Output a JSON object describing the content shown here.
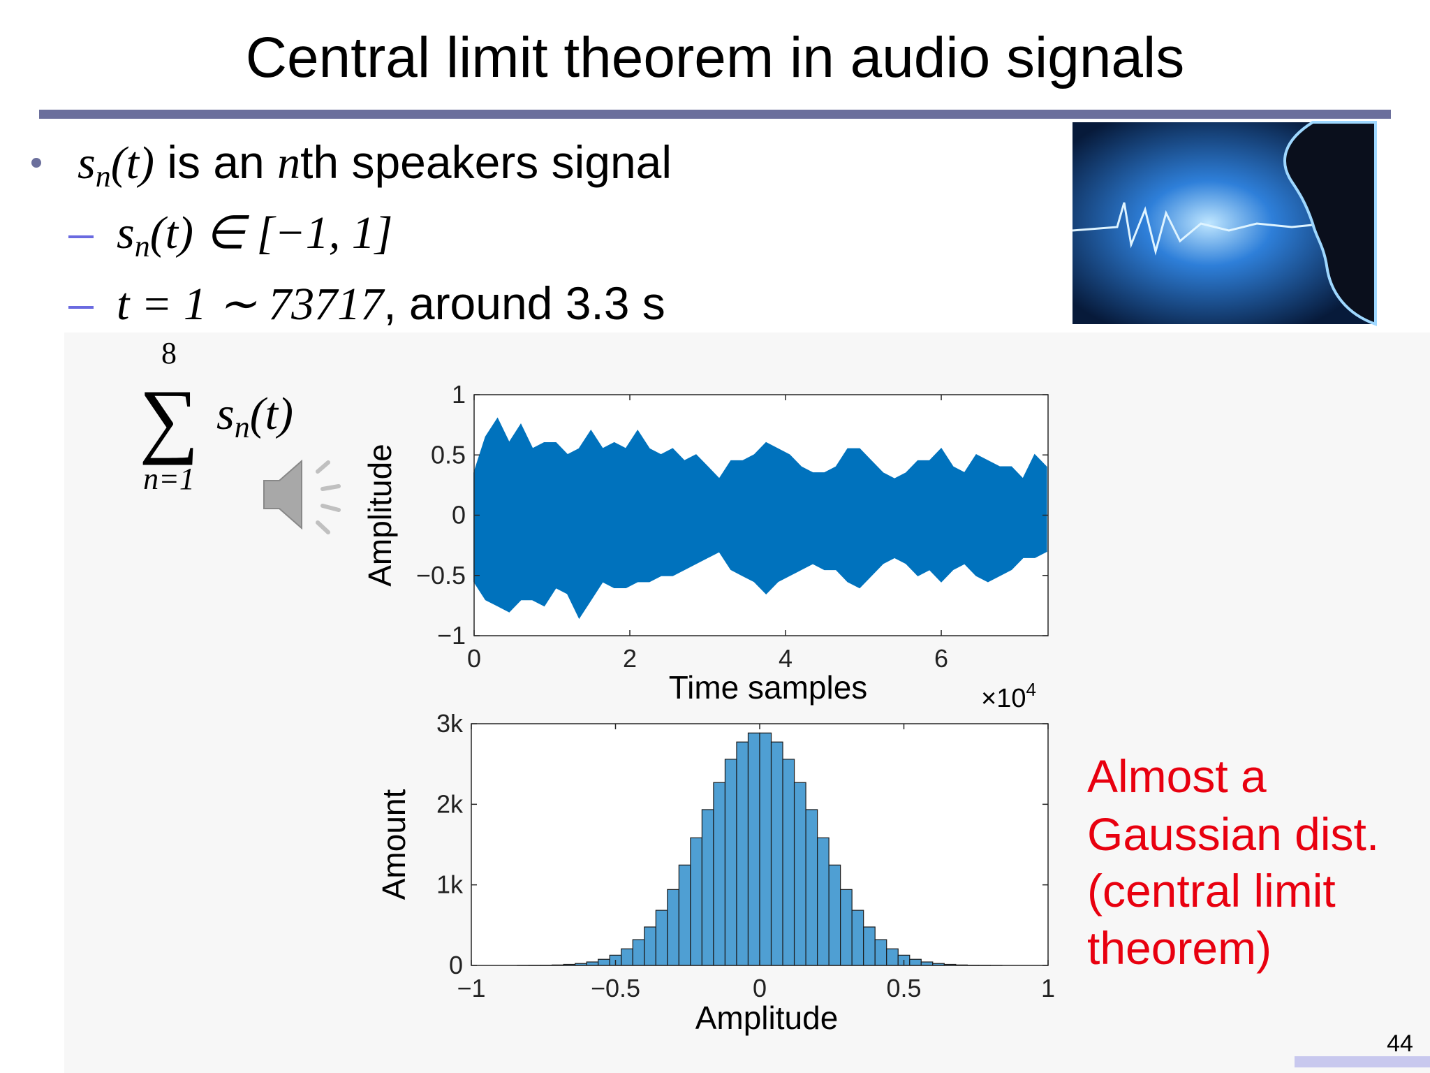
{
  "slide": {
    "title": "Central limit theorem in audio signals",
    "bullet": {
      "math": [
        "s",
        "n",
        "(t)"
      ],
      "text": [
        " is an ",
        "n",
        "th speakers signal"
      ]
    },
    "sub1": [
      "s",
      "n",
      "(t) ∈ [−1, 1]"
    ],
    "sub2": [
      "t = 1 ∼ 73717",
      ", around 3.3 s"
    ],
    "sum": {
      "upper": "8",
      "symbol": "∑",
      "lower": "n=1",
      "term": [
        "s",
        "n",
        "(t)"
      ]
    },
    "callout": [
      "Almost a",
      "Gaussian dist.",
      "(central limit",
      "theorem)"
    ],
    "page_number": "44"
  },
  "chart_data": [
    {
      "type": "band",
      "xlabel": "Time samples",
      "ylabel": "Amplitude",
      "color": "#0072bd",
      "x_multiplier": "×10",
      "x_exponent": "4",
      "xlim": [
        0,
        7.3717
      ],
      "xticks": [
        0,
        2,
        4,
        6
      ],
      "ylim": [
        -1,
        1
      ],
      "yticks": [
        {
          "value": -1,
          "label": "−1"
        },
        {
          "value": -0.5,
          "label": "−0.5"
        },
        0,
        0.5,
        1
      ],
      "x": [
        0,
        0.15,
        0.3,
        0.45,
        0.6,
        0.75,
        0.9,
        1.05,
        1.2,
        1.35,
        1.5,
        1.65,
        1.8,
        1.95,
        2.1,
        2.25,
        2.4,
        2.55,
        2.7,
        2.85,
        3.0,
        3.15,
        3.3,
        3.45,
        3.6,
        3.75,
        3.9,
        4.05,
        4.2,
        4.35,
        4.5,
        4.65,
        4.8,
        4.95,
        5.1,
        5.25,
        5.4,
        5.55,
        5.7,
        5.85,
        6.0,
        6.15,
        6.3,
        6.45,
        6.6,
        6.75,
        6.9,
        7.05,
        7.2,
        7.35
      ],
      "upper": [
        0.35,
        0.65,
        0.8,
        0.6,
        0.75,
        0.55,
        0.6,
        0.6,
        0.5,
        0.55,
        0.7,
        0.55,
        0.6,
        0.55,
        0.7,
        0.55,
        0.5,
        0.55,
        0.45,
        0.5,
        0.4,
        0.3,
        0.45,
        0.45,
        0.5,
        0.6,
        0.55,
        0.5,
        0.4,
        0.35,
        0.35,
        0.4,
        0.55,
        0.55,
        0.45,
        0.35,
        0.3,
        0.35,
        0.45,
        0.45,
        0.55,
        0.4,
        0.35,
        0.5,
        0.45,
        0.4,
        0.4,
        0.3,
        0.5,
        0.4
      ],
      "lower": [
        -0.55,
        -0.7,
        -0.75,
        -0.8,
        -0.7,
        -0.7,
        -0.75,
        -0.6,
        -0.65,
        -0.85,
        -0.7,
        -0.55,
        -0.6,
        -0.6,
        -0.55,
        -0.55,
        -0.5,
        -0.5,
        -0.45,
        -0.4,
        -0.35,
        -0.3,
        -0.45,
        -0.5,
        -0.55,
        -0.65,
        -0.55,
        -0.5,
        -0.45,
        -0.4,
        -0.45,
        -0.45,
        -0.55,
        -0.6,
        -0.5,
        -0.4,
        -0.35,
        -0.4,
        -0.5,
        -0.45,
        -0.55,
        -0.45,
        -0.4,
        -0.5,
        -0.55,
        -0.5,
        -0.45,
        -0.35,
        -0.35,
        -0.3
      ]
    },
    {
      "type": "histogram",
      "xlabel": "Amplitude",
      "ylabel": "Amount",
      "color": "#4f9fd3",
      "xlim": [
        -1,
        1
      ],
      "xticks": [
        {
          "value": -1,
          "label": "−1"
        },
        {
          "value": -0.5,
          "label": "−0.5"
        },
        0,
        0.5,
        1
      ],
      "ylim": [
        0,
        3000
      ],
      "yticks": [
        0,
        {
          "value": 1000,
          "label": "1k"
        },
        {
          "value": 2000,
          "label": "2k"
        },
        {
          "value": 3000,
          "label": "3k"
        }
      ],
      "bins": [
        -1,
        -0.96,
        -0.92,
        -0.88,
        -0.84,
        -0.8,
        -0.76,
        -0.72,
        -0.68,
        -0.64,
        -0.6,
        -0.56,
        -0.52,
        -0.48,
        -0.44,
        -0.4,
        -0.36,
        -0.32,
        -0.28,
        -0.24,
        -0.2,
        -0.16,
        -0.12,
        -0.08,
        -0.04,
        0,
        0.04,
        0.08,
        0.12,
        0.16,
        0.2,
        0.24,
        0.28,
        0.32,
        0.36,
        0.4,
        0.44,
        0.48,
        0.52,
        0.56,
        0.6,
        0.64,
        0.68,
        0.72,
        0.76,
        0.8,
        0.84,
        0.88,
        0.92,
        0.96,
        1
      ],
      "values": [
        0,
        0,
        0,
        0,
        1,
        2,
        3,
        6,
        13,
        24,
        43,
        76,
        127,
        206,
        320,
        477,
        684,
        942,
        1246,
        1584,
        1934,
        2270,
        2559,
        2773,
        2885,
        2885,
        2773,
        2559,
        2270,
        1934,
        1584,
        1246,
        942,
        684,
        477,
        320,
        206,
        127,
        76,
        43,
        24,
        13,
        6,
        3,
        2,
        1,
        0,
        0,
        0,
        0
      ]
    }
  ]
}
